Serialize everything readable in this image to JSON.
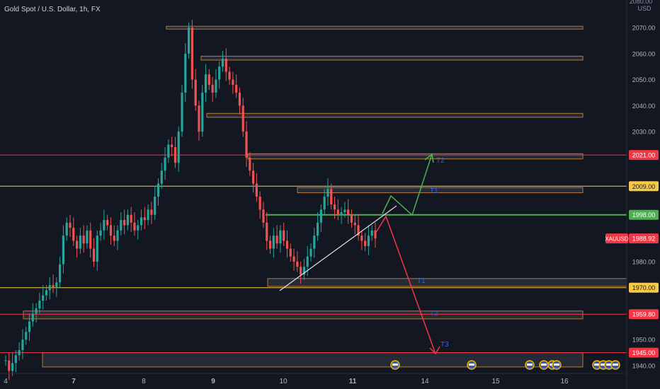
{
  "header": {
    "title": "Gold Spot / U.S. Dollar, 1h, FX"
  },
  "price_axis": {
    "top_label": "2080.00",
    "currency": "USD",
    "ticks": [
      "2070.00",
      "2060.00",
      "2050.00",
      "2040.00",
      "2030.00",
      "2021.00",
      "2009.00",
      "1998.00",
      "1988.92",
      "1980.00",
      "1970.00",
      "1959.80",
      "1950.00",
      "1945.00",
      "1940.00"
    ]
  },
  "time_axis": {
    "ticks": [
      "4",
      "7",
      "8",
      "9",
      "10",
      "11",
      "14",
      "15",
      "16"
    ]
  },
  "symbol_badge": "XAUUSD",
  "colors": {
    "background": "#131722",
    "bull": "#26a69a",
    "bear": "#ef5350",
    "resistance": "#f23645",
    "support_yellow": "#f7c948",
    "pivot_green": "#4caf50",
    "zone_fill": "#2a2e39",
    "zone_border": "#b37a3a",
    "target_label": "#2962ff",
    "trendline": "#e0e3eb"
  },
  "chart_data": {
    "type": "candlestick",
    "title": "Gold Spot / U.S. Dollar, 1h, FX",
    "y_unit": "USD",
    "ylim": [
      1937,
      2082
    ],
    "x_ticks": [
      "4",
      "7",
      "8",
      "9",
      "10",
      "11",
      "14",
      "15",
      "16"
    ],
    "current_price": 1988.92,
    "horizontal_levels": [
      {
        "price": 2021.0,
        "color": "red"
      },
      {
        "price": 2009.0,
        "color": "yellow"
      },
      {
        "price": 1998.0,
        "color": "green"
      },
      {
        "price": 1970.0,
        "color": "yellow"
      },
      {
        "price": 1959.8,
        "color": "red"
      },
      {
        "price": 1945.0,
        "color": "red"
      }
    ],
    "zones": [
      {
        "low": 2069.5,
        "high": 2070.5
      },
      {
        "low": 2057.5,
        "high": 2059.0
      },
      {
        "low": 2035.5,
        "high": 2037.0
      },
      {
        "low": 2019.5,
        "high": 2021.5
      },
      {
        "low": 2006.5,
        "high": 2008.5
      },
      {
        "low": 1970.5,
        "high": 1973.5
      },
      {
        "low": 1958.0,
        "high": 1961.0
      },
      {
        "low": 1939.5,
        "high": 1945.0
      }
    ],
    "targets_up": [
      "T1",
      "T2"
    ],
    "targets_down": [
      "T1",
      "T2",
      "T3"
    ],
    "prices": [
      1942,
      1938,
      1941,
      1944,
      1946,
      1950,
      1953,
      1957,
      1960,
      1962,
      1965,
      1967,
      1969,
      1971,
      1970,
      1972,
      1979,
      1990,
      1995,
      1993,
      1988,
      1985,
      1990,
      1987,
      1992,
      1985,
      1980,
      1990,
      1992,
      1996,
      1994,
      1990,
      1988,
      1992,
      1996,
      1994,
      1998,
      1995,
      1992,
      1994,
      1997,
      1996,
      2000,
      1998,
      2005,
      2010,
      2015,
      2020,
      2025,
      2024,
      2018,
      2030,
      2045,
      2060,
      2070,
      2050,
      2040,
      2030,
      2045,
      2052,
      2048,
      2045,
      2050,
      2055,
      2058,
      2053,
      2050,
      2048,
      2045,
      2040,
      2030,
      2020,
      2015,
      2010,
      2005,
      2000,
      1995,
      1988,
      1985,
      1990,
      1987,
      1992,
      1988,
      1985,
      1982,
      1980,
      1978,
      1975,
      1978,
      1982,
      1985,
      1990,
      1995,
      2000,
      2005,
      2008,
      2002,
      2000,
      1998,
      1999,
      2000,
      1998,
      1995,
      1994,
      1990,
      1988,
      1986,
      1990,
      1992,
      1988.92
    ]
  }
}
